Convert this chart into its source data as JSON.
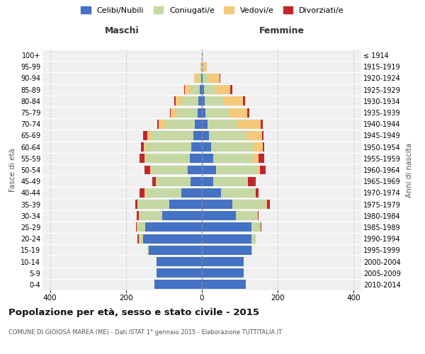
{
  "age_groups": [
    "0-4",
    "5-9",
    "10-14",
    "15-19",
    "20-24",
    "25-29",
    "30-34",
    "35-39",
    "40-44",
    "45-49",
    "50-54",
    "55-59",
    "60-64",
    "65-69",
    "70-74",
    "75-79",
    "80-84",
    "85-89",
    "90-94",
    "95-99",
    "100+"
  ],
  "birth_years": [
    "2010-2014",
    "2005-2009",
    "2000-2004",
    "1995-1999",
    "1990-1994",
    "1985-1989",
    "1980-1984",
    "1975-1979",
    "1970-1974",
    "1965-1969",
    "1960-1964",
    "1955-1959",
    "1950-1954",
    "1945-1949",
    "1940-1944",
    "1935-1939",
    "1930-1934",
    "1925-1929",
    "1920-1924",
    "1915-1919",
    "≤ 1914"
  ],
  "maschi": {
    "celibi": [
      125,
      120,
      120,
      140,
      155,
      150,
      105,
      85,
      55,
      30,
      38,
      32,
      28,
      22,
      18,
      12,
      10,
      5,
      2,
      0,
      0
    ],
    "coniugati": [
      0,
      0,
      0,
      3,
      10,
      20,
      60,
      85,
      95,
      90,
      95,
      115,
      120,
      110,
      80,
      55,
      45,
      25,
      8,
      2,
      0
    ],
    "vedovi": [
      0,
      0,
      0,
      0,
      2,
      2,
      2,
      0,
      2,
      2,
      3,
      5,
      5,
      12,
      15,
      15,
      15,
      15,
      10,
      2,
      0
    ],
    "divorziati": [
      0,
      0,
      0,
      0,
      2,
      2,
      5,
      5,
      12,
      8,
      15,
      12,
      8,
      10,
      5,
      2,
      2,
      2,
      0,
      0,
      0
    ]
  },
  "femmine": {
    "nubili": [
      115,
      110,
      110,
      130,
      130,
      130,
      90,
      80,
      50,
      30,
      38,
      30,
      25,
      18,
      15,
      10,
      8,
      5,
      2,
      0,
      0
    ],
    "coniugate": [
      0,
      0,
      0,
      2,
      12,
      25,
      55,
      90,
      90,
      90,
      110,
      105,
      110,
      100,
      80,
      60,
      50,
      30,
      15,
      5,
      0
    ],
    "vedove": [
      0,
      0,
      0,
      0,
      0,
      0,
      2,
      2,
      2,
      2,
      5,
      15,
      25,
      40,
      60,
      50,
      50,
      40,
      30,
      8,
      0
    ],
    "divorziate": [
      0,
      0,
      0,
      0,
      0,
      2,
      3,
      8,
      8,
      20,
      15,
      15,
      5,
      5,
      5,
      5,
      5,
      5,
      2,
      0,
      0
    ]
  },
  "colors": {
    "celibi_nubili": "#4472C4",
    "coniugati": "#C5D8A3",
    "vedovi": "#F5C97A",
    "divorziati": "#C0272D"
  },
  "title": "Popolazione per età, sesso e stato civile - 2015",
  "subtitle": "COMUNE DI GIOIOSA MAREA (ME) - Dati ISTAT 1° gennaio 2015 - Elaborazione TUTTITALIA.IT",
  "ylabel_left": "Fasce di età",
  "ylabel_right": "Anni di nascita",
  "xlabel_maschi": "Maschi",
  "xlabel_femmine": "Femmine",
  "legend_labels": [
    "Celibi/Nubili",
    "Coniugati/e",
    "Vedovi/e",
    "Divorziati/e"
  ],
  "xlim": 420,
  "bg_color": "#ffffff",
  "plot_bg_color": "#f0f0f0"
}
